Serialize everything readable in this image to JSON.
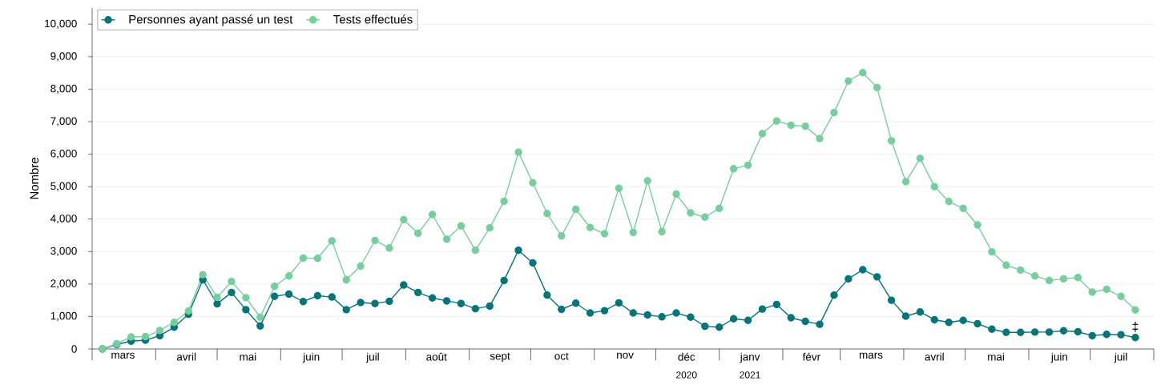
{
  "chart_data": {
    "type": "line",
    "ylabel": "Nombre",
    "x": [
      "2020-03-06",
      "2020-03-13",
      "2020-03-20",
      "2020-03-27",
      "2020-04-03",
      "2020-04-10",
      "2020-04-17",
      "2020-04-24",
      "2020-05-01",
      "2020-05-08",
      "2020-05-15",
      "2020-05-22",
      "2020-05-29",
      "2020-06-05",
      "2020-06-12",
      "2020-06-19",
      "2020-06-26",
      "2020-07-03",
      "2020-07-10",
      "2020-07-17",
      "2020-07-24",
      "2020-07-31",
      "2020-08-07",
      "2020-08-14",
      "2020-08-21",
      "2020-08-28",
      "2020-09-04",
      "2020-09-11",
      "2020-09-18",
      "2020-09-25",
      "2020-10-02",
      "2020-10-09",
      "2020-10-16",
      "2020-10-23",
      "2020-10-30",
      "2020-11-06",
      "2020-11-13",
      "2020-11-20",
      "2020-11-27",
      "2020-12-04",
      "2020-12-11",
      "2020-12-18",
      "2020-12-25",
      "2021-01-01",
      "2021-01-08",
      "2021-01-15",
      "2021-01-22",
      "2021-01-29",
      "2021-02-05",
      "2021-02-12",
      "2021-02-19",
      "2021-02-26",
      "2021-03-05",
      "2021-03-12",
      "2021-03-19",
      "2021-03-26",
      "2021-04-02",
      "2021-04-09",
      "2021-04-16",
      "2021-04-23",
      "2021-04-30",
      "2021-05-07",
      "2021-05-14",
      "2021-05-21",
      "2021-05-28",
      "2021-06-04",
      "2021-06-11",
      "2021-06-18",
      "2021-06-25",
      "2021-07-02",
      "2021-07-09",
      "2021-07-16",
      "2021-07-23"
    ],
    "series": [
      {
        "name": "Personnes ayant passé un test",
        "color": "#00767a",
        "values": [
          0,
          140,
          240,
          270,
          410,
          670,
          1070,
          2130,
          1390,
          1740,
          1210,
          710,
          1620,
          1690,
          1460,
          1640,
          1600,
          1210,
          1430,
          1400,
          1470,
          1970,
          1740,
          1570,
          1480,
          1400,
          1240,
          1320,
          2110,
          3040,
          2650,
          1660,
          1220,
          1410,
          1110,
          1180,
          1420,
          1110,
          1050,
          990,
          1110,
          980,
          700,
          670,
          930,
          880,
          1230,
          1370,
          960,
          850,
          760,
          1660,
          2160,
          2440,
          2220,
          1500,
          1010,
          1140,
          900,
          820,
          880,
          780,
          610,
          510,
          510,
          520,
          520,
          560,
          530,
          410,
          450,
          440,
          350
        ]
      },
      {
        "name": "Tests effectués",
        "color": "#74d09b",
        "values": [
          0,
          160,
          370,
          380,
          570,
          820,
          1170,
          2290,
          1590,
          2080,
          1580,
          980,
          1930,
          2250,
          2800,
          2790,
          3330,
          2130,
          2550,
          3340,
          3110,
          3980,
          3560,
          4140,
          3380,
          3790,
          3040,
          3730,
          4550,
          6060,
          5120,
          4170,
          3480,
          4300,
          3740,
          3550,
          4950,
          3590,
          5180,
          3610,
          4770,
          4190,
          4060,
          4330,
          5550,
          5660,
          6630,
          7020,
          6890,
          6860,
          6480,
          7280,
          8250,
          8510,
          8050,
          6410,
          5150,
          5870,
          5000,
          4540,
          4330,
          3820,
          2990,
          2580,
          2430,
          2250,
          2110,
          2160,
          2200,
          1750,
          1840,
          1620,
          1200
        ]
      }
    ],
    "xlim": [
      "2020-03-01",
      "2021-08-01"
    ],
    "xticks": [
      {
        "value": "2020-03-01",
        "label": null
      },
      {
        "value": "2020-03-16",
        "label": "mars"
      },
      {
        "value": "2020-04-01",
        "label": null
      },
      {
        "value": "2020-04-16",
        "label": "avril"
      },
      {
        "value": "2020-05-01",
        "label": null
      },
      {
        "value": "2020-05-16",
        "label": "mai"
      },
      {
        "value": "2020-06-01",
        "label": null
      },
      {
        "value": "2020-06-16",
        "label": "juin"
      },
      {
        "value": "2020-07-01",
        "label": null
      },
      {
        "value": "2020-07-16",
        "label": "juil"
      },
      {
        "value": "2020-08-01",
        "label": null
      },
      {
        "value": "2020-08-16",
        "label": "août"
      },
      {
        "value": "2020-09-01",
        "label": null
      },
      {
        "value": "2020-09-16",
        "label": "sept"
      },
      {
        "value": "2020-10-01",
        "label": null
      },
      {
        "value": "2020-10-16",
        "label": "oct"
      },
      {
        "value": "2020-11-01",
        "label": null
      },
      {
        "value": "2020-11-16",
        "label": "nov"
      },
      {
        "value": "2020-12-01",
        "label": null
      },
      {
        "value": "2020-12-16",
        "label": "déc"
      },
      {
        "value": "2021-01-01",
        "label": null
      },
      {
        "value": "2021-01-16",
        "label": "janv"
      },
      {
        "value": "2021-02-01",
        "label": null
      },
      {
        "value": "2021-02-15",
        "label": "févr"
      },
      {
        "value": "2021-03-01",
        "label": null
      },
      {
        "value": "2021-03-16",
        "label": "mars"
      },
      {
        "value": "2021-04-01",
        "label": null
      },
      {
        "value": "2021-04-16",
        "label": "avril"
      },
      {
        "value": "2021-05-01",
        "label": null
      },
      {
        "value": "2021-05-16",
        "label": "mai"
      },
      {
        "value": "2021-06-01",
        "label": null
      },
      {
        "value": "2021-06-16",
        "label": "juin"
      },
      {
        "value": "2021-07-01",
        "label": null
      },
      {
        "value": "2021-07-16",
        "label": "juil"
      },
      {
        "value": "2021-08-01",
        "label": null
      }
    ],
    "ylim": [
      0,
      10500
    ],
    "yticks": [
      0,
      {
        "value": 1000,
        "label": "1,000"
      },
      {
        "value": 2000,
        "label": "2,000"
      },
      {
        "value": 3000,
        "label": "3,000"
      },
      {
        "value": 4000,
        "label": "4,000"
      },
      {
        "value": 5000,
        "label": "5,000"
      },
      {
        "value": 6000,
        "label": "6,000"
      },
      {
        "value": 7000,
        "label": "7,000"
      },
      {
        "value": 8000,
        "label": "8,000"
      },
      {
        "value": 9000,
        "label": "9,000"
      },
      {
        "value": 10000,
        "label": "10,000"
      }
    ],
    "grid": "y",
    "legend": "top left",
    "marker": "circle",
    "line_style": "solid",
    "annotations": [
      {
        "text": "‡",
        "x": "2021-07-23",
        "y": 350
      },
      "2020",
      "2021"
    ]
  }
}
